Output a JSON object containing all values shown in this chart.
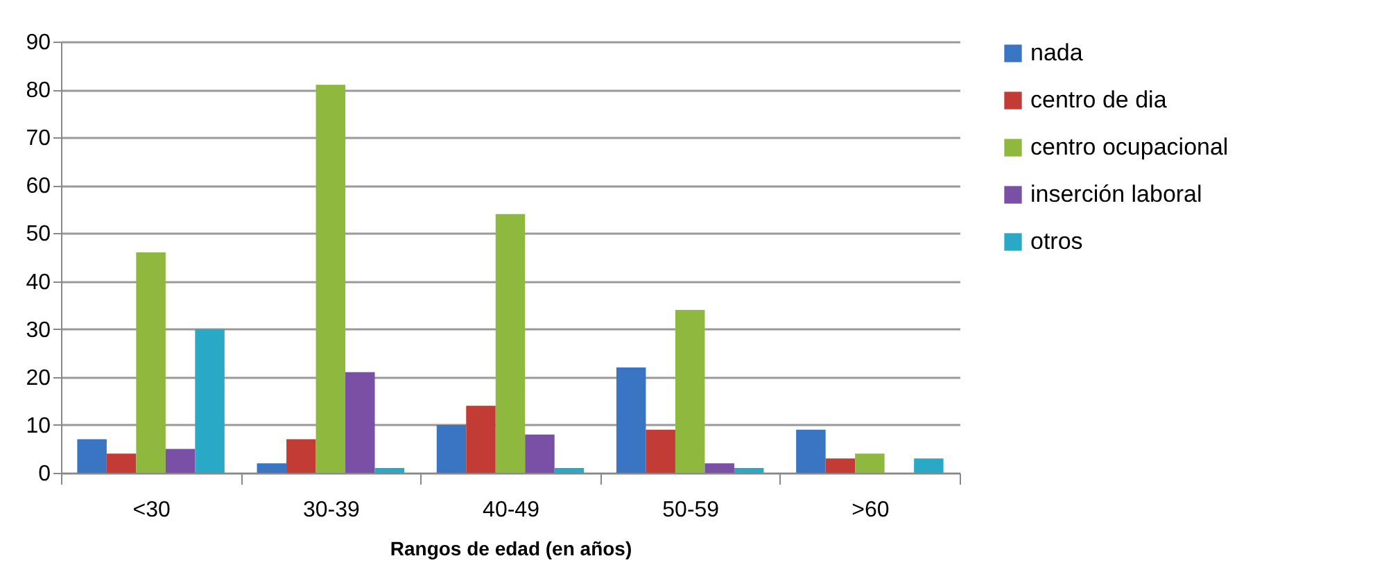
{
  "chart_data": {
    "type": "bar",
    "xlabel": "Rangos de edad (en años)",
    "categories": [
      "<30",
      "30-39",
      "40-49",
      "50-59",
      ">60"
    ],
    "series": [
      {
        "name": "nada",
        "color": "#3a75c3",
        "values": [
          7,
          2,
          10,
          22,
          9
        ]
      },
      {
        "name": "centro de dia",
        "color": "#c33b35",
        "values": [
          4,
          7,
          14,
          9,
          3
        ]
      },
      {
        "name": "centro ocupacional",
        "color": "#8fb83e",
        "values": [
          46,
          81,
          54,
          34,
          4
        ]
      },
      {
        "name": "inserción laboral",
        "color": "#7a4fa6",
        "values": [
          5,
          21,
          8,
          2,
          null
        ]
      },
      {
        "name": "otros",
        "color": "#2aa9c6",
        "values": [
          30,
          1,
          1,
          1,
          3
        ]
      }
    ],
    "ylim": [
      0,
      90
    ],
    "yticks": [
      0,
      10,
      20,
      30,
      40,
      50,
      60,
      70,
      80,
      90
    ],
    "grid": "y",
    "legend": "right"
  }
}
